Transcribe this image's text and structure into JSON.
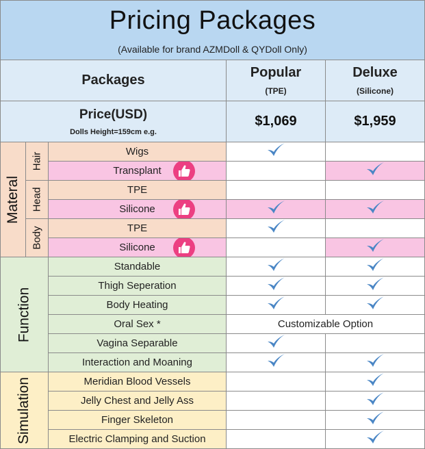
{
  "title": "Pricing Packages",
  "subtitle": "(Available for brand AZMDoll & QYDoll Only)",
  "header": {
    "packages_label": "Packages",
    "popular": {
      "name": "Popular",
      "material": "(TPE)"
    },
    "deluxe": {
      "name": "Deluxe",
      "material": "(Silicone)"
    }
  },
  "price_row": {
    "label": "Price(USD)",
    "note": "Dolls Height=159cm e.g.",
    "popular": "$1,069",
    "deluxe": "$1,959"
  },
  "groups": {
    "material": "Materal",
    "hair": "Hair",
    "head": "Head",
    "body": "Body",
    "function": "Function",
    "simulation": "Simulation"
  },
  "features": [
    {
      "label": "Wigs",
      "popular": true,
      "deluxe": false,
      "thumb": false
    },
    {
      "label": "Transplant",
      "popular": false,
      "deluxe": true,
      "thumb": true
    },
    {
      "label": "TPE",
      "popular": false,
      "deluxe": false,
      "thumb": false
    },
    {
      "label": "Silicone",
      "popular": true,
      "deluxe": true,
      "thumb": true
    },
    {
      "label": "TPE",
      "popular": true,
      "deluxe": false,
      "thumb": false
    },
    {
      "label": "Silicone",
      "popular": false,
      "deluxe": true,
      "thumb": true
    },
    {
      "label": "Standable",
      "popular": true,
      "deluxe": true,
      "thumb": false
    },
    {
      "label": "Thigh Seperation",
      "popular": true,
      "deluxe": true,
      "thumb": false
    },
    {
      "label": "Body Heating",
      "popular": true,
      "deluxe": true,
      "thumb": false
    },
    {
      "label": "Oral Sex *",
      "merged": "Customizable Option",
      "thumb": false
    },
    {
      "label": "Vagina Separable",
      "popular": true,
      "deluxe": false,
      "thumb": false
    },
    {
      "label": "Interaction and Moaning",
      "popular": true,
      "deluxe": true,
      "thumb": false
    },
    {
      "label": "Meridian Blood Vessels",
      "popular": false,
      "deluxe": true,
      "thumb": false
    },
    {
      "label": "Jelly Chest and Jelly Ass",
      "popular": false,
      "deluxe": true,
      "thumb": false
    },
    {
      "label": "Finger Skeleton",
      "popular": false,
      "deluxe": true,
      "thumb": false
    },
    {
      "label": "Electric Clamping and Suction",
      "popular": false,
      "deluxe": true,
      "thumb": false
    }
  ],
  "colors": {
    "title_bg": "#b9d7f1",
    "header_bg": "#ddebf7",
    "material_bg": "#f8dcc9",
    "highlight_bg": "#f9c5e3",
    "function_bg": "#e0eed6",
    "simulation_bg": "#fdefc6",
    "check": "#4a86c5",
    "thumb_badge": "#ec3f82"
  },
  "icons": {
    "check": "checkmark-icon",
    "thumb": "thumbs-up-icon"
  }
}
